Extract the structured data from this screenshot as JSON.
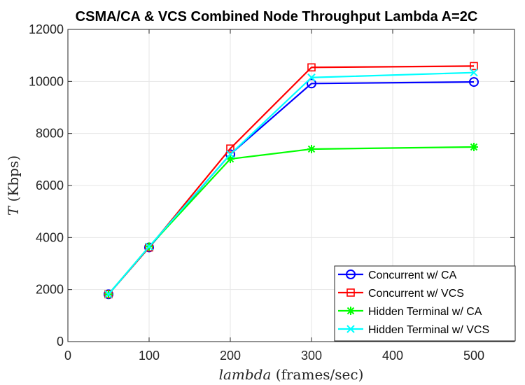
{
  "chart_data": {
    "type": "line",
    "title": "CSMA/CA & VCS Combined Node Throughput Lambda A=2C",
    "xlabel": {
      "var": "lambda",
      "unit": " (frames/sec)"
    },
    "ylabel": {
      "var": "T",
      "unit": " (Kbps)"
    },
    "x": [
      50,
      100,
      200,
      300,
      500
    ],
    "x_ticks": [
      "0",
      "100",
      "200",
      "300",
      "400",
      "500"
    ],
    "y_ticks": [
      "0",
      "2000",
      "4000",
      "6000",
      "8000",
      "10000",
      "12000"
    ],
    "xlim": [
      0,
      550
    ],
    "ylim": [
      0,
      12000
    ],
    "grid": true,
    "legend_location": "bottom-right",
    "series": [
      {
        "name": "Concurrent w/ CA",
        "color": "#0000ff",
        "marker": "circle",
        "values": [
          1820,
          3620,
          7200,
          9920,
          9980
        ]
      },
      {
        "name": "Concurrent w/ VCS",
        "color": "#ff0000",
        "marker": "square",
        "values": [
          1820,
          3620,
          7420,
          10540,
          10590
        ]
      },
      {
        "name": "Hidden Terminal w/ CA",
        "color": "#00ff00",
        "marker": "asterisk",
        "values": [
          1820,
          3650,
          7020,
          7400,
          7480
        ]
      },
      {
        "name": "Hidden Terminal w/ VCS",
        "color": "#00ffff",
        "marker": "x",
        "values": [
          1820,
          3650,
          7200,
          10150,
          10340
        ]
      }
    ]
  }
}
